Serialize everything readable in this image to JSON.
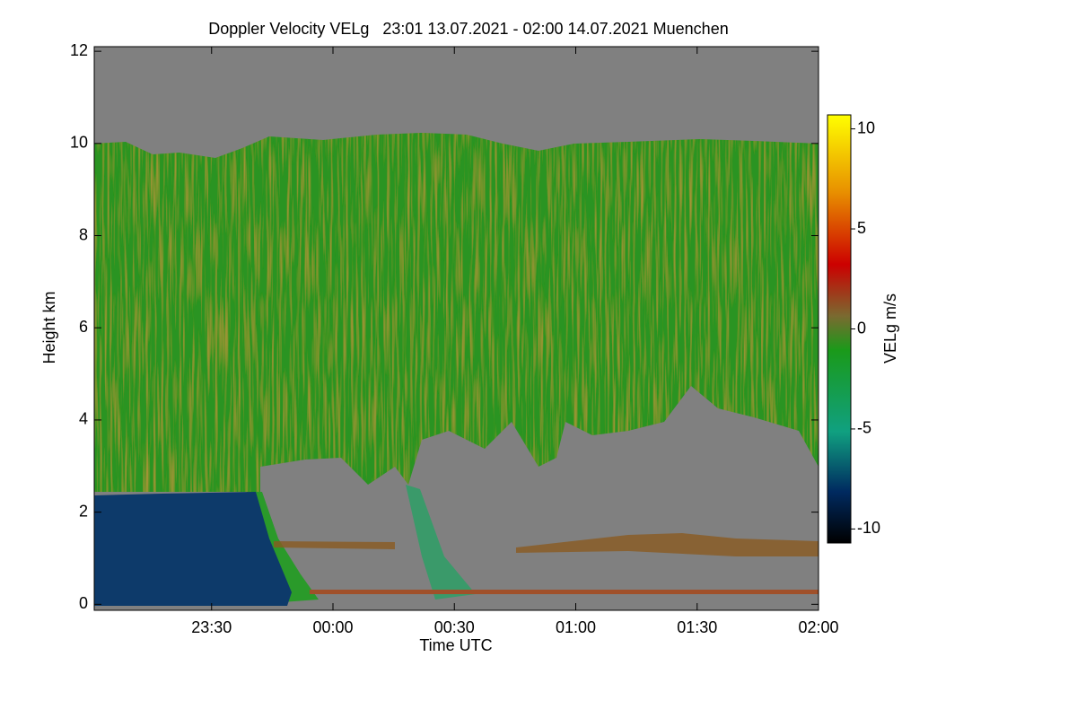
{
  "chart_data": {
    "type": "heatmap",
    "title": "Doppler Velocity VELg   23:01 13.07.2021 - 02:00 14.07.2021 Muenchen",
    "x_label": "Time UTC",
    "y_label": "Height km",
    "xlim": [
      1,
      180
    ],
    "xticks": [
      {
        "value": 30,
        "label": "23:30"
      },
      {
        "value": 60,
        "label": "00:00"
      },
      {
        "value": 90,
        "label": "00:30"
      },
      {
        "value": 120,
        "label": "01:00"
      },
      {
        "value": 150,
        "label": "01:30"
      },
      {
        "value": 180,
        "label": "02:00"
      }
    ],
    "ylim": [
      -0.13,
      12.1
    ],
    "yticks": [
      0,
      2,
      4,
      6,
      8,
      10,
      12
    ],
    "colorbar": {
      "label": "VELg m/s",
      "lim": [
        -10.7,
        10.7
      ],
      "ticks": [
        -10,
        -5,
        0,
        5,
        10
      ]
    }
  }
}
